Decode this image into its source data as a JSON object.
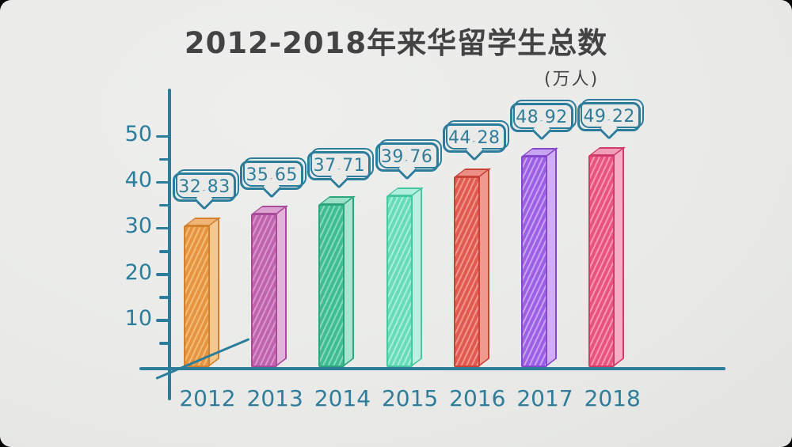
{
  "chart_data": {
    "type": "bar",
    "title": "2012-2018年来华留学生总数",
    "ylabel": "(万人)",
    "unit": "万人",
    "xlabel": "",
    "categories": [
      "2012",
      "2013",
      "2014",
      "2015",
      "2016",
      "2017",
      "2018"
    ],
    "values": [
      32.83,
      35.65,
      37.71,
      39.76,
      44.28,
      48.92,
      49.22
    ],
    "value_labels": [
      "32.83",
      "35.65",
      "37.71",
      "39.76",
      "44.28",
      "48.92",
      "49.22"
    ],
    "ylim": [
      0,
      50
    ],
    "yticks": [
      10,
      20,
      30,
      40,
      50
    ],
    "ytick_minor_step": 5,
    "grid": false,
    "legend": false,
    "annotation_style": "speech-bubble value label above each bar",
    "accent_color": "#2c7c9b",
    "title_color": "#434343",
    "background_color": "#eaebe9",
    "bar_styles": [
      {
        "front": "#e79440",
        "hatch": "#f3bc78",
        "side": "#f4c78f",
        "top": "#f0b477",
        "stroke": "#d3812f"
      },
      {
        "front": "#bf63ae",
        "hatch": "#d996cc",
        "side": "#e3b4da",
        "top": "#daa3d0",
        "stroke": "#a94b99"
      },
      {
        "front": "#3fbd92",
        "hatch": "#85dabe",
        "side": "#abe5d0",
        "top": "#9ce0c8",
        "stroke": "#2da57d"
      },
      {
        "front": "#67dcb8",
        "hatch": "#aaeed8",
        "side": "#bbf1e0",
        "top": "#b0efdb",
        "stroke": "#46c7a0"
      },
      {
        "front": "#e15a50",
        "hatch": "#ef968e",
        "side": "#f0998f",
        "top": "#ec8f86",
        "stroke": "#ca4338"
      },
      {
        "front": "#9d5fe5",
        "hatch": "#c7a3f2",
        "side": "#cfaef4",
        "top": "#c7a5f1",
        "stroke": "#8748cf"
      },
      {
        "front": "#e85380",
        "hatch": "#f498b3",
        "side": "#f7adc5",
        "top": "#f2a0ba",
        "stroke": "#d23a67"
      }
    ]
  }
}
